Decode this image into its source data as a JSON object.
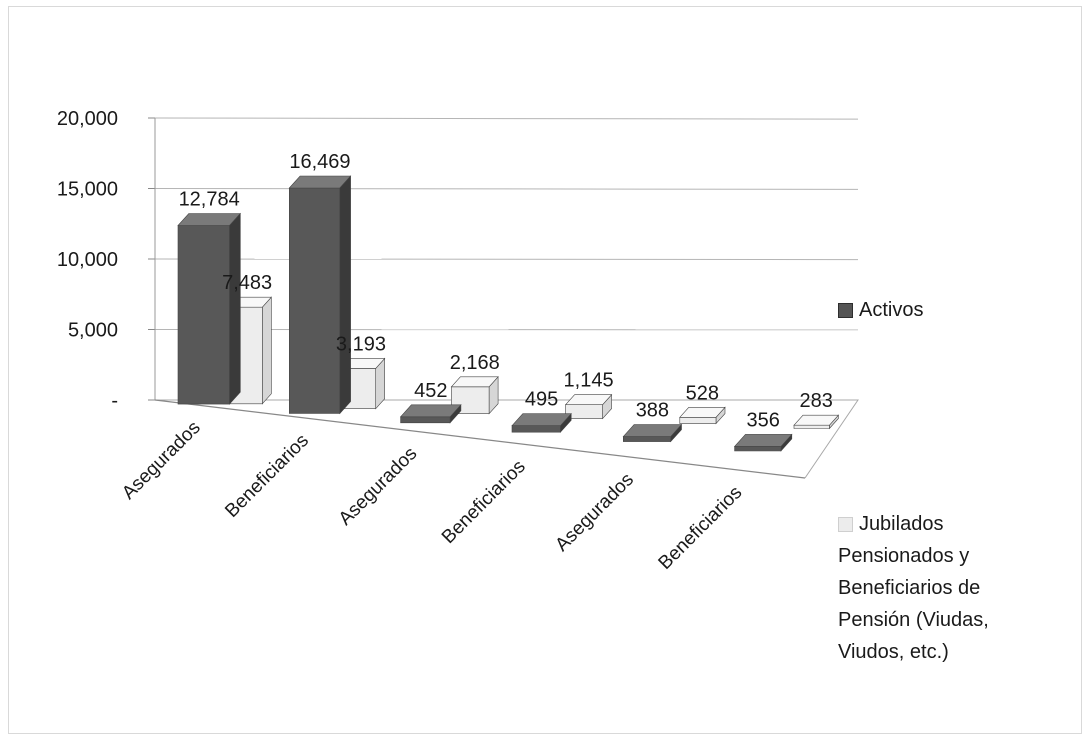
{
  "chart_data": {
    "type": "bar",
    "subtype": "3d-clustered-column",
    "title": "",
    "xlabel": "",
    "ylabel": "",
    "categories": [
      "Asegurados",
      "Beneficiarios",
      "Asegurados",
      "Beneficiarios",
      "Asegurados",
      "Beneficiarios"
    ],
    "series": [
      {
        "name": "Activos",
        "values": [
          12784,
          16469,
          452,
          495,
          388,
          356
        ],
        "value_labels": [
          "12,784",
          "16,469",
          "452",
          "495",
          "388",
          "356"
        ]
      },
      {
        "name": "Jubilados Pensionados y Beneficiarios de Pensión (Viudas, Viudos, etc.)",
        "values": [
          7483,
          3193,
          2168,
          1145,
          528,
          283
        ],
        "value_labels": [
          "7,483",
          "3,193",
          "2,168",
          "1,145",
          "528",
          "283"
        ]
      }
    ],
    "ylim": [
      0,
      20000
    ],
    "yticks": [
      0,
      5000,
      10000,
      15000,
      20000
    ],
    "ytick_labels": [
      "-",
      "5,000",
      "10,000",
      "15,000",
      "20,000"
    ],
    "grid": true,
    "legend_position": "right"
  },
  "colors": {
    "activos_front": "#585858",
    "activos_side": "#3a3a3a",
    "activos_top": "#7a7a7a",
    "jub_front": "#ededed",
    "jub_side": "#d6d6d6",
    "jub_top": "#f8f8f8",
    "grid": "#b5b5b5"
  },
  "legend": {
    "activos": "Activos",
    "jubilados_lines": [
      "Jubilados",
      "Pensionados y",
      "Beneficiarios de",
      "Pensión (Viudas,",
      "Viudos, etc.)"
    ]
  }
}
